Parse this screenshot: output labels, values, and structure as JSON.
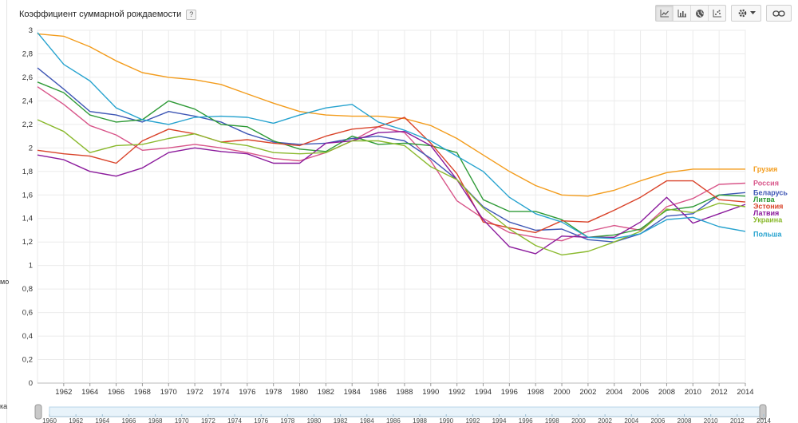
{
  "header": {
    "title": "Коэффициент суммарной рождаемости",
    "help_label": "?"
  },
  "toolbar": {
    "line_icon": "line-chart-icon",
    "bar_icon": "bar-chart-icon",
    "map_icon": "globe-icon",
    "scatter_icon": "scatter-chart-icon",
    "settings_icon": "gear-icon",
    "link_icon": "link-icon"
  },
  "left_edge": {
    "frag1": "мо",
    "frag2": "ка"
  },
  "timeline": {
    "labels": [
      "1960",
      "1962",
      "1964",
      "1966",
      "1968",
      "1970",
      "1972",
      "1974",
      "1976",
      "1978",
      "1980",
      "1982",
      "1984",
      "1986",
      "1988",
      "1990",
      "1992",
      "1994",
      "1996",
      "1998",
      "2000",
      "2002",
      "2004",
      "2006",
      "2008",
      "2010",
      "2012",
      "2014"
    ]
  },
  "chart_data": {
    "type": "line",
    "title": "Коэффициент суммарной рождаемости",
    "xlabel": "",
    "ylabel": "",
    "xlim": [
      1960,
      2014
    ],
    "ylim": [
      0,
      3
    ],
    "yticks": [
      0,
      0.2,
      0.4,
      0.6,
      0.8,
      1,
      1.2,
      1.4,
      1.6,
      1.8,
      2,
      2.2,
      2.4,
      2.6,
      2.8,
      3
    ],
    "ytick_labels": [
      "0",
      "0,2",
      "0,4",
      "0,6",
      "0,8",
      "1",
      "1,2",
      "1,4",
      "1,6",
      "1,8",
      "2",
      "2,2",
      "2,4",
      "2,6",
      "2,8",
      "3"
    ],
    "xticks": [
      1962,
      1964,
      1966,
      1968,
      1970,
      1972,
      1974,
      1976,
      1978,
      1980,
      1982,
      1984,
      1986,
      1988,
      1990,
      1992,
      1994,
      1996,
      1998,
      2000,
      2002,
      2004,
      2006,
      2008,
      2010,
      2012,
      2014
    ],
    "grid": true,
    "legend": "right-end labels",
    "series": [
      {
        "name": "Грузия",
        "color": "#f39c1c",
        "x": [
          1960,
          1962,
          1964,
          1966,
          1968,
          1970,
          1972,
          1974,
          1976,
          1978,
          1980,
          1982,
          1984,
          1986,
          1988,
          1990,
          1992,
          1994,
          1996,
          1998,
          2000,
          2002,
          2004,
          2006,
          2008,
          2010,
          2012,
          2014
        ],
        "y": [
          2.97,
          2.95,
          2.86,
          2.74,
          2.64,
          2.6,
          2.58,
          2.54,
          2.46,
          2.38,
          2.31,
          2.28,
          2.27,
          2.27,
          2.25,
          2.19,
          2.08,
          1.94,
          1.8,
          1.68,
          1.6,
          1.59,
          1.64,
          1.72,
          1.79,
          1.82,
          1.82,
          1.82
        ]
      },
      {
        "name": "Россия",
        "color": "#d8568a",
        "x": [
          1960,
          1962,
          1964,
          1966,
          1968,
          1970,
          1972,
          1974,
          1976,
          1978,
          1980,
          1982,
          1984,
          1986,
          1988,
          1990,
          1992,
          1994,
          1996,
          1998,
          2000,
          2002,
          2004,
          2006,
          2008,
          2010,
          2012,
          2014
        ],
        "y": [
          2.52,
          2.37,
          2.19,
          2.11,
          1.98,
          2.0,
          2.03,
          2.0,
          1.96,
          1.91,
          1.89,
          1.96,
          2.06,
          2.18,
          2.13,
          1.89,
          1.55,
          1.4,
          1.28,
          1.24,
          1.21,
          1.29,
          1.34,
          1.3,
          1.5,
          1.57,
          1.69,
          1.7
        ]
      },
      {
        "name": "Беларусь",
        "color": "#3f57b5",
        "x": [
          1960,
          1962,
          1964,
          1966,
          1968,
          1970,
          1972,
          1974,
          1976,
          1978,
          1980,
          1982,
          1984,
          1986,
          1988,
          1990,
          1992,
          1994,
          1996,
          1998,
          2000,
          2002,
          2004,
          2006,
          2008,
          2010,
          2012,
          2014
        ],
        "y": [
          2.68,
          2.5,
          2.31,
          2.28,
          2.22,
          2.31,
          2.27,
          2.22,
          2.12,
          2.05,
          2.03,
          2.04,
          2.08,
          2.1,
          2.06,
          1.91,
          1.73,
          1.5,
          1.37,
          1.3,
          1.31,
          1.22,
          1.2,
          1.27,
          1.42,
          1.44,
          1.6,
          1.62
        ]
      },
      {
        "name": "Литва",
        "color": "#2e9a36",
        "x": [
          1960,
          1962,
          1964,
          1966,
          1968,
          1970,
          1972,
          1974,
          1976,
          1978,
          1980,
          1982,
          1984,
          1986,
          1988,
          1990,
          1992,
          1994,
          1996,
          1998,
          2000,
          2002,
          2004,
          2006,
          2008,
          2010,
          2012,
          2014
        ],
        "y": [
          2.56,
          2.47,
          2.28,
          2.22,
          2.24,
          2.4,
          2.33,
          2.2,
          2.18,
          2.06,
          1.99,
          1.97,
          2.1,
          2.03,
          2.04,
          2.02,
          1.96,
          1.56,
          1.46,
          1.46,
          1.39,
          1.24,
          1.26,
          1.31,
          1.47,
          1.5,
          1.6,
          1.59
        ]
      },
      {
        "name": "Эстония",
        "color": "#d9432a",
        "x": [
          1960,
          1962,
          1964,
          1966,
          1968,
          1970,
          1972,
          1974,
          1976,
          1978,
          1980,
          1982,
          1984,
          1986,
          1988,
          1990,
          1992,
          1994,
          1996,
          1998,
          2000,
          2002,
          2004,
          2006,
          2008,
          2010,
          2012,
          2014
        ],
        "y": [
          1.98,
          1.95,
          1.93,
          1.87,
          2.06,
          2.16,
          2.12,
          2.05,
          2.07,
          2.04,
          2.02,
          2.1,
          2.16,
          2.18,
          2.26,
          2.04,
          1.78,
          1.37,
          1.32,
          1.28,
          1.38,
          1.37,
          1.47,
          1.58,
          1.72,
          1.72,
          1.56,
          1.54
        ]
      },
      {
        "name": "Латвия",
        "color": "#8b1a9c",
        "x": [
          1960,
          1962,
          1964,
          1966,
          1968,
          1970,
          1972,
          1974,
          1976,
          1978,
          1980,
          1982,
          1984,
          1986,
          1988,
          1990,
          1992,
          1994,
          1996,
          1998,
          2000,
          2002,
          2004,
          2006,
          2008,
          2010,
          2012,
          2014
        ],
        "y": [
          1.94,
          1.9,
          1.8,
          1.76,
          1.83,
          1.96,
          2.0,
          1.97,
          1.95,
          1.87,
          1.87,
          2.04,
          2.06,
          2.13,
          2.14,
          2.02,
          1.73,
          1.39,
          1.16,
          1.1,
          1.25,
          1.24,
          1.24,
          1.37,
          1.58,
          1.36,
          1.44,
          1.52
        ]
      },
      {
        "name": "Украина",
        "color": "#8ab92d",
        "x": [
          1960,
          1962,
          1964,
          1966,
          1968,
          1970,
          1972,
          1974,
          1976,
          1978,
          1980,
          1982,
          1984,
          1986,
          1988,
          1990,
          1992,
          1994,
          1996,
          1998,
          2000,
          2002,
          2004,
          2006,
          2008,
          2010,
          2012,
          2014
        ],
        "y": [
          2.24,
          2.14,
          1.96,
          2.02,
          2.03,
          2.08,
          2.12,
          2.05,
          2.02,
          1.96,
          1.95,
          1.96,
          2.06,
          2.06,
          2.02,
          1.84,
          1.73,
          1.49,
          1.31,
          1.17,
          1.09,
          1.12,
          1.2,
          1.29,
          1.48,
          1.45,
          1.53,
          1.5
        ]
      },
      {
        "name": "Польша",
        "color": "#27a3cf",
        "x": [
          1960,
          1962,
          1964,
          1966,
          1968,
          1970,
          1972,
          1974,
          1976,
          1978,
          1980,
          1982,
          1984,
          1986,
          1988,
          1990,
          1992,
          1994,
          1996,
          1998,
          2000,
          2002,
          2004,
          2006,
          2008,
          2010,
          2012,
          2014
        ],
        "y": [
          2.98,
          2.71,
          2.57,
          2.34,
          2.24,
          2.2,
          2.26,
          2.27,
          2.26,
          2.21,
          2.28,
          2.34,
          2.37,
          2.22,
          2.15,
          2.06,
          1.93,
          1.8,
          1.58,
          1.44,
          1.37,
          1.24,
          1.23,
          1.27,
          1.39,
          1.41,
          1.33,
          1.29
        ]
      }
    ]
  }
}
